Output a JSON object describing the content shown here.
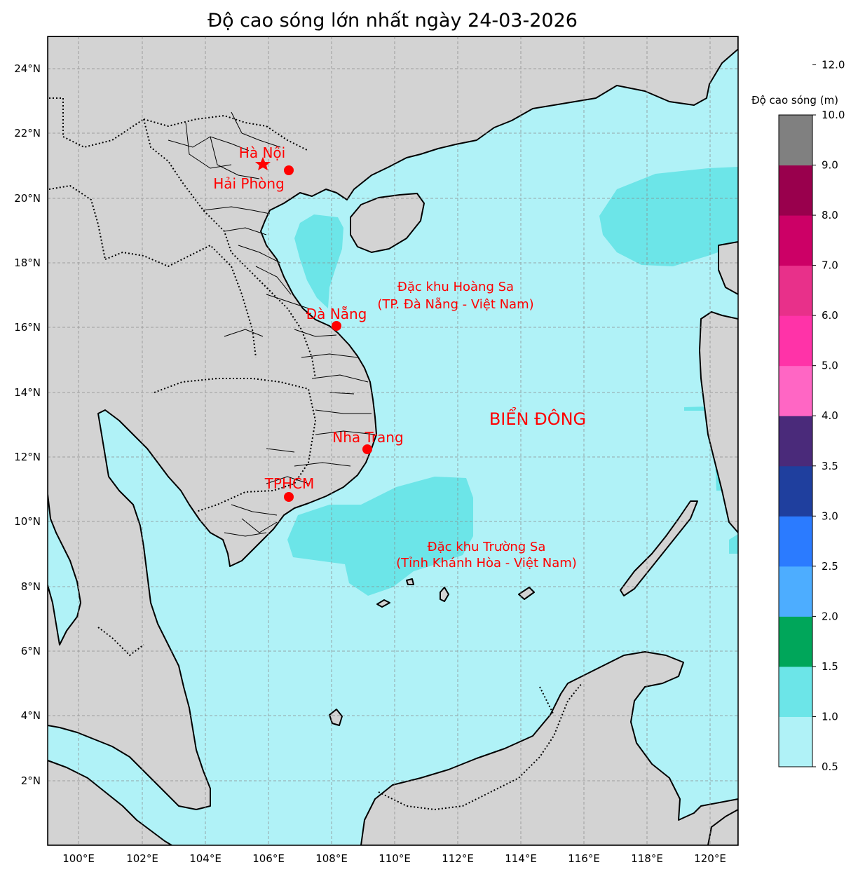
{
  "title": "Độ cao sóng lớn nhất ngày 24-03-2026",
  "map": {
    "lon_range": [
      99,
      121
    ],
    "lat_range": [
      0,
      25
    ],
    "lon_ticks": [
      {
        "v": 100,
        "label": "100°E"
      },
      {
        "v": 102,
        "label": "102°E"
      },
      {
        "v": 104,
        "label": "104°E"
      },
      {
        "v": 106,
        "label": "106°E"
      },
      {
        "v": 108,
        "label": "108°E"
      },
      {
        "v": 110,
        "label": "110°E"
      },
      {
        "v": 112,
        "label": "112°E"
      },
      {
        "v": 114,
        "label": "114°E"
      },
      {
        "v": 116,
        "label": "116°E"
      },
      {
        "v": 118,
        "label": "118°E"
      },
      {
        "v": 120,
        "label": "120°E"
      }
    ],
    "lat_ticks": [
      {
        "v": 2,
        "label": "2°N"
      },
      {
        "v": 4,
        "label": "4°N"
      },
      {
        "v": 6,
        "label": "6°N"
      },
      {
        "v": 8,
        "label": "8°N"
      },
      {
        "v": 10,
        "label": "10°N"
      },
      {
        "v": 12,
        "label": "12°N"
      },
      {
        "v": 14,
        "label": "14°N"
      },
      {
        "v": 16,
        "label": "16°N"
      },
      {
        "v": 18,
        "label": "18°N"
      },
      {
        "v": 20,
        "label": "20°N"
      },
      {
        "v": 22,
        "label": "22°N"
      },
      {
        "v": 24,
        "label": "24°N"
      }
    ],
    "grid": true,
    "colors": {
      "land": "#d3d3d3",
      "sea": "#b0f2f7",
      "wave_1_1_5": "#6ce5e8",
      "marker": "#ff0000"
    },
    "cities": [
      {
        "name": "Hà Nội",
        "lon": 105.85,
        "lat": 21.03,
        "marker": "star"
      },
      {
        "name": "Hải Phòng",
        "lon": 106.68,
        "lat": 20.86,
        "marker": "circle"
      },
      {
        "name": "Đà Nẵng",
        "lon": 108.2,
        "lat": 16.05,
        "marker": "circle"
      },
      {
        "name": "Nha Trang",
        "lon": 109.19,
        "lat": 12.24,
        "marker": "circle"
      },
      {
        "name": "TPHCM",
        "lon": 106.66,
        "lat": 10.8,
        "marker": "circle"
      }
    ],
    "annotations": {
      "hoang_sa_1": "Đặc khu Hoàng Sa",
      "hoang_sa_2": "(TP. Đà Nẵng - Việt Nam)",
      "truong_sa_1": "Đặc khu Trường Sa",
      "truong_sa_2": "(Tỉnh Khánh Hòa - Việt Nam)",
      "sea_name": "BIỂN ĐÔNG"
    }
  },
  "colorbar": {
    "label": "Độ cao sóng (m)",
    "bounds": [
      0.5,
      1.0,
      1.5,
      2.0,
      2.5,
      3.0,
      3.5,
      4.0,
      5.0,
      6.0,
      7.0,
      8.0,
      9.0,
      10.0,
      12.0
    ],
    "tick_labels": [
      "0.5",
      "1.0",
      "1.5",
      "2.0",
      "2.5",
      "3.0",
      "3.5",
      "4.0",
      "5.0",
      "6.0",
      "7.0",
      "8.0",
      "9.0",
      "10.0",
      "12.0"
    ],
    "colors": [
      "#b0f2f7",
      "#6ce5e8",
      "#00a65a",
      "#4dadff",
      "#2b7bff",
      "#1f3f9e",
      "#4a2a7a",
      "#ff66c4",
      "#ff33a8",
      "#e8308a",
      "#cc0066",
      "#99004d",
      "#808080"
    ]
  }
}
